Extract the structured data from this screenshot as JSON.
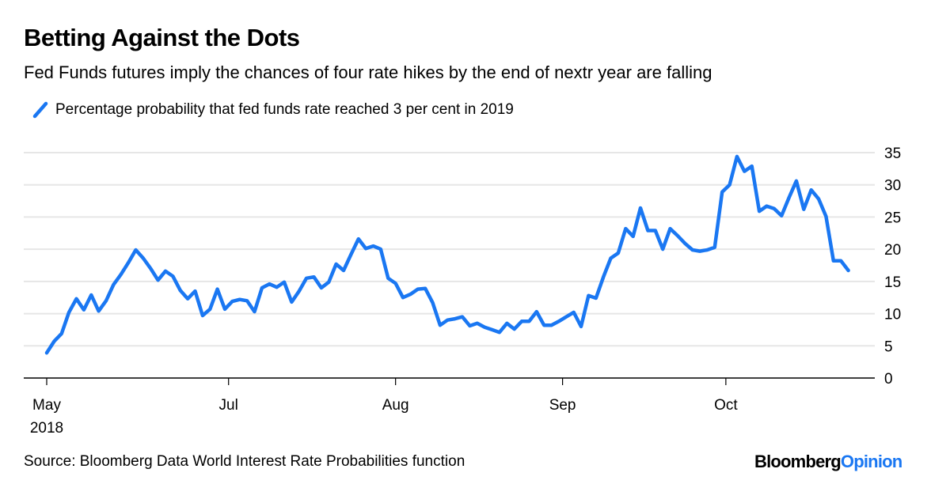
{
  "header": {
    "title": "Betting Against the Dots",
    "subtitle": "Fed Funds futures imply the chances of four rate hikes by the end of nextr year are falling"
  },
  "legend": {
    "label": "Percentage probability that fed funds rate reached 3 per cent in 2019",
    "color": "#1a77f2"
  },
  "footer": {
    "source": "Source: Bloomberg Data World Interest Rate Probabilities function",
    "brand_primary": "Bloomberg",
    "brand_secondary": "Opinion",
    "brand_secondary_color": "#1a77f2"
  },
  "chart_data": {
    "type": "line",
    "title": "Betting Against the Dots",
    "subtitle": "Fed Funds futures imply the chances of four rate hikes by the end of nextr year are falling",
    "xlabel": "",
    "ylabel": "",
    "ylim": [
      0,
      35
    ],
    "yticks": [
      0,
      5,
      10,
      15,
      20,
      25,
      30,
      35
    ],
    "y_axis_side": "right",
    "grid": true,
    "legend_position": "top-left",
    "xticks": [
      {
        "label": "May",
        "sublabel": "2018",
        "index": 0
      },
      {
        "label": "Jul",
        "sublabel": "",
        "index": 24.5
      },
      {
        "label": "Aug",
        "sublabel": "",
        "index": 47
      },
      {
        "label": "Sep",
        "sublabel": "",
        "index": 69.5
      },
      {
        "label": "Oct",
        "sublabel": "",
        "index": 91.5
      }
    ],
    "x_index_range": [
      0,
      110.5
    ],
    "series": [
      {
        "name": "Percentage probability that fed funds rate reached 3 per cent in 2019",
        "color": "#1a77f2",
        "values": [
          3.9,
          5.7,
          6.9,
          10.2,
          12.3,
          10.6,
          12.9,
          10.4,
          12.0,
          14.5,
          16.1,
          17.9,
          19.9,
          18.6,
          17.0,
          15.2,
          16.6,
          15.8,
          13.6,
          12.3,
          13.5,
          9.7,
          10.7,
          13.8,
          10.7,
          11.9,
          12.2,
          12.0,
          10.3,
          14.0,
          14.6,
          14.1,
          14.9,
          11.8,
          13.5,
          15.5,
          15.7,
          14.0,
          14.9,
          17.7,
          16.7,
          19.2,
          21.6,
          20.1,
          20.5,
          20.0,
          15.5,
          14.7,
          12.5,
          13.0,
          13.8,
          13.9,
          11.7,
          8.2,
          9.0,
          9.2,
          9.5,
          8.1,
          8.5,
          7.9,
          7.5,
          7.1,
          8.5,
          7.6,
          8.8,
          8.8,
          10.3,
          8.2,
          8.2,
          8.8,
          9.5,
          10.2,
          8.0,
          12.8,
          12.4,
          15.7,
          18.6,
          19.4,
          23.2,
          22.0,
          26.4,
          22.9,
          22.9,
          20.0,
          23.2,
          22.1,
          20.9,
          19.9,
          19.7,
          19.9,
          20.3,
          28.9,
          30.0,
          34.4,
          32.1,
          32.9,
          25.9,
          26.7,
          26.3,
          25.2,
          28.0,
          30.6,
          26.2,
          29.2,
          27.8,
          25.1,
          18.2,
          18.2,
          16.7
        ]
      }
    ]
  }
}
